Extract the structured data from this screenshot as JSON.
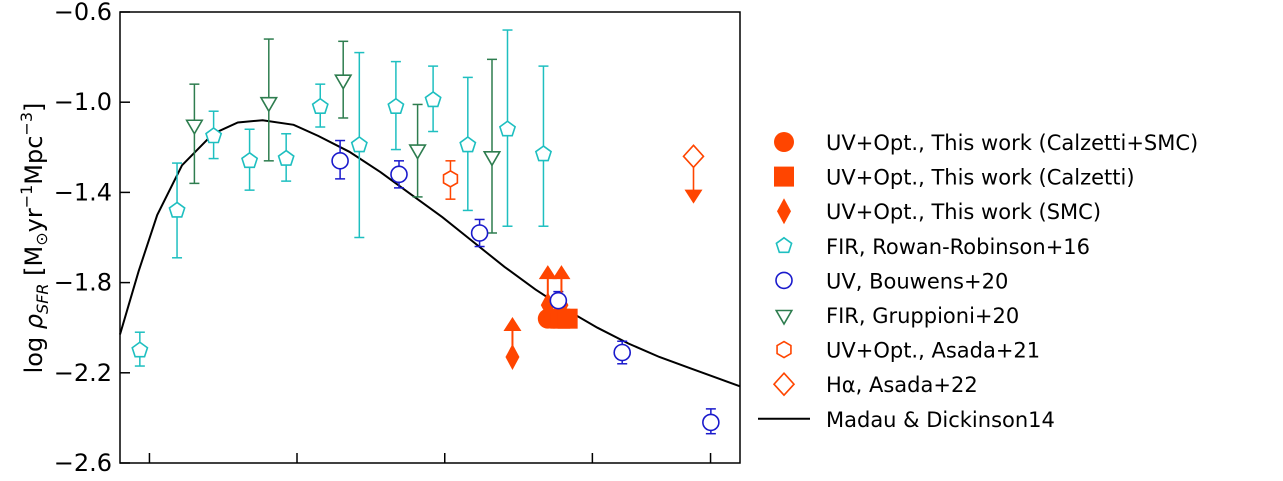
{
  "chart_data": {
    "type": "scatter",
    "ylabel_parts": [
      "log ",
      "ρ",
      "SFR",
      " [M",
      "⊙",
      "yr",
      "−1",
      "Mpc",
      "−3",
      "]"
    ],
    "ylim": [
      -2.6,
      -0.6
    ],
    "yticks": [
      -0.6,
      -1.0,
      -1.4,
      -1.8,
      -2.2,
      -2.6
    ],
    "ytick_labels": [
      "−0.6",
      "−1.0",
      "−1.4",
      "−1.8",
      "−2.2",
      "−2.6"
    ],
    "xlim": [
      0,
      1
    ],
    "xtick_positions": [
      0.0475,
      0.2855,
      0.5238,
      0.7619,
      0.9525
    ],
    "grid": false,
    "legend_position": "right",
    "series": [
      {
        "name": "UV+Opt., This work (Calzetti+SMC)",
        "marker": "circle-filled",
        "color": "#ff4500",
        "points": [
          {
            "x": 0.69,
            "y": -1.96
          },
          {
            "x": 0.7,
            "y": -1.96
          }
        ]
      },
      {
        "name": "UV+Opt., This work (Calzetti)",
        "marker": "square-filled",
        "color": "#ff4500",
        "points": [
          {
            "x": 0.71,
            "y": -1.96
          },
          {
            "x": 0.722,
            "y": -1.96
          }
        ]
      },
      {
        "name": "UV+Opt., This work (SMC)",
        "marker": "diamond-filled",
        "color": "#ff4500",
        "points": [
          {
            "x": 0.633,
            "y": -2.13,
            "lower_limit": true
          },
          {
            "x": 0.69,
            "y": -1.9,
            "lower_limit": true
          },
          {
            "x": 0.712,
            "y": -1.9,
            "lower_limit": true
          }
        ]
      },
      {
        "name": "FIR, Rowan-Robinson+16",
        "marker": "pentagon-open",
        "color": "#1ebfc0",
        "points": [
          {
            "x": 0.032,
            "y": -2.1,
            "yerr": [
              0.07,
              0.08
            ]
          },
          {
            "x": 0.092,
            "y": -1.48,
            "yerr": [
              0.21,
              0.21
            ]
          },
          {
            "x": 0.151,
            "y": -1.15,
            "yerr": [
              0.1,
              0.11
            ]
          },
          {
            "x": 0.209,
            "y": -1.26,
            "yerr": [
              0.13,
              0.14
            ]
          },
          {
            "x": 0.268,
            "y": -1.25,
            "yerr": [
              0.1,
              0.11
            ]
          },
          {
            "x": 0.323,
            "y": -1.02,
            "yerr": [
              0.09,
              0.1
            ]
          },
          {
            "x": 0.386,
            "y": -1.19,
            "yerr": [
              0.41,
              0.41
            ]
          },
          {
            "x": 0.445,
            "y": -1.02,
            "yerr": [
              0.19,
              0.2
            ]
          },
          {
            "x": 0.505,
            "y": -0.99,
            "yerr": [
              0.14,
              0.15
            ]
          },
          {
            "x": 0.561,
            "y": -1.19,
            "yerr": [
              0.29,
              0.3
            ]
          },
          {
            "x": 0.625,
            "y": -1.12,
            "yerr": [
              0.43,
              0.44
            ]
          },
          {
            "x": 0.683,
            "y": -1.23,
            "yerr": [
              0.32,
              0.39
            ]
          }
        ]
      },
      {
        "name": "UV, Bouwens+20",
        "marker": "circle-open",
        "color": "#1a1acc",
        "points": [
          {
            "x": 0.355,
            "y": -1.26,
            "yerr": [
              0.08,
              0.09
            ]
          },
          {
            "x": 0.45,
            "y": -1.32,
            "yerr": [
              0.06,
              0.06
            ]
          },
          {
            "x": 0.58,
            "y": -1.58,
            "yerr": [
              0.06,
              0.06
            ]
          },
          {
            "x": 0.707,
            "y": -1.88,
            "yerr": [
              0.04,
              0.04
            ]
          },
          {
            "x": 0.81,
            "y": -2.11,
            "yerr": [
              0.05,
              0.05
            ]
          },
          {
            "x": 0.953,
            "y": -2.42,
            "yerr": [
              0.05,
              0.06
            ]
          }
        ]
      },
      {
        "name": "FIR, Gruppioni+20",
        "marker": "triangle-down-open",
        "color": "#2e7d4f",
        "points": [
          {
            "x": 0.12,
            "y": -1.1,
            "yerr": [
              0.26,
              0.18
            ]
          },
          {
            "x": 0.24,
            "y": -1.0,
            "yerr": [
              0.26,
              0.28
            ]
          },
          {
            "x": 0.36,
            "y": -0.9,
            "yerr": [
              0.17,
              0.17
            ]
          },
          {
            "x": 0.48,
            "y": -1.21,
            "yerr": [
              0.21,
              0.2
            ]
          },
          {
            "x": 0.6,
            "y": -1.24,
            "yerr": [
              0.34,
              0.43
            ]
          }
        ]
      },
      {
        "name": "UV+Opt., Asada+21",
        "marker": "hexagon-open",
        "color": "#ff4500",
        "points": [
          {
            "x": 0.533,
            "y": -1.34,
            "yerr": [
              0.09,
              0.08
            ]
          }
        ]
      },
      {
        "name": "Hα, Asada+22",
        "marker": "diamond-open",
        "color": "#ff4500",
        "points": [
          {
            "x": 0.925,
            "y": -1.24,
            "upper_limit_to": -1.45
          }
        ]
      },
      {
        "name": "Madau & Dickinson14",
        "marker": "line",
        "color": "#000000",
        "curve": [
          {
            "x": 0.0,
            "y": -2.03
          },
          {
            "x": 0.03,
            "y": -1.75
          },
          {
            "x": 0.06,
            "y": -1.5
          },
          {
            "x": 0.1,
            "y": -1.28
          },
          {
            "x": 0.15,
            "y": -1.14
          },
          {
            "x": 0.19,
            "y": -1.09
          },
          {
            "x": 0.23,
            "y": -1.08
          },
          {
            "x": 0.28,
            "y": -1.1
          },
          {
            "x": 0.32,
            "y": -1.15
          },
          {
            "x": 0.37,
            "y": -1.22
          },
          {
            "x": 0.42,
            "y": -1.31
          },
          {
            "x": 0.47,
            "y": -1.41
          },
          {
            "x": 0.52,
            "y": -1.51
          },
          {
            "x": 0.57,
            "y": -1.62
          },
          {
            "x": 0.62,
            "y": -1.73
          },
          {
            "x": 0.67,
            "y": -1.83
          },
          {
            "x": 0.72,
            "y": -1.92
          },
          {
            "x": 0.77,
            "y": -2.0
          },
          {
            "x": 0.82,
            "y": -2.07
          },
          {
            "x": 0.87,
            "y": -2.13
          },
          {
            "x": 0.92,
            "y": -2.18
          },
          {
            "x": 0.97,
            "y": -2.23
          },
          {
            "x": 1.0,
            "y": -2.26
          }
        ]
      }
    ]
  }
}
